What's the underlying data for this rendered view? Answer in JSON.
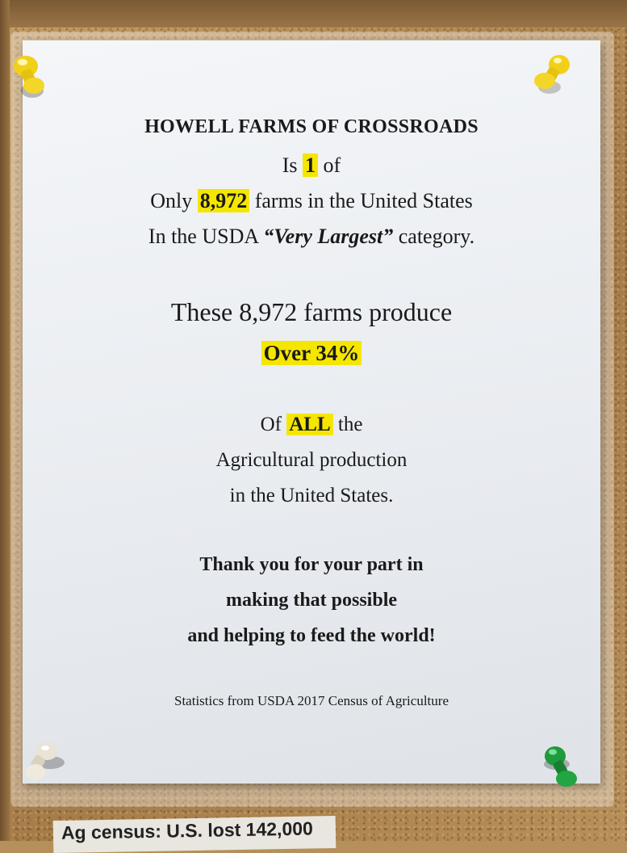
{
  "sign": {
    "title": "HOWELL FARMS OF CROSSROADS",
    "line2_pre": "Is ",
    "line2_hl": "1",
    "line2_post": " of",
    "line3_pre": "Only ",
    "line3_hl": "8,972",
    "line3_post": " farms in the United States",
    "line4_pre": "In the USDA ",
    "line4_em": "“Very Largest”",
    "line4_post": " category.",
    "line5": "These 8,972 farms produce",
    "line6_hl": "Over 34%",
    "line7_pre": "Of ",
    "line7_hl": "ALL",
    "line7_post": " the",
    "line8": "Agricultural production",
    "line9": "in the United States.",
    "thanks1": "Thank you for your part in",
    "thanks2": "making that possible",
    "thanks3": "and helping to feed the world!",
    "source": "Statistics from USDA 2017 Census of Agriculture"
  },
  "clipping": {
    "text": "Ag census: U.S. lost 142,000"
  },
  "colors": {
    "highlight": "#f5e600",
    "pin_yellow": "#f2d01a",
    "pin_white": "#e9e4d6",
    "pin_green": "#1f9a3c"
  },
  "icons": [
    "push-pin-icon"
  ]
}
